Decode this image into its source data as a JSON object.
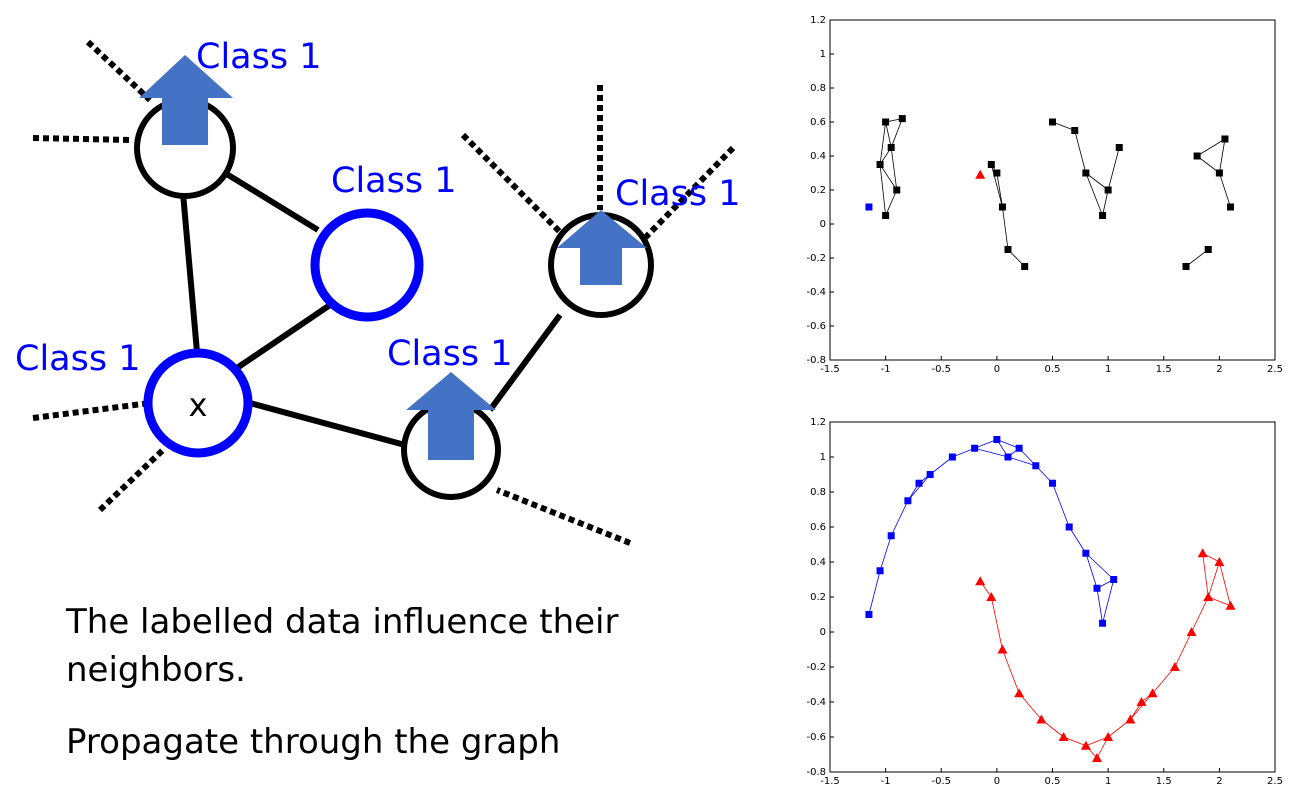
{
  "graph": {
    "labels": {
      "top_left": "Class 1",
      "middle": "Class 1",
      "right": "Class 1",
      "node_x_side": "Class 1",
      "bottom_middle": "Class 1"
    },
    "node_x_text": "x",
    "colors": {
      "label": "#0000ff",
      "arrow": "#4472c4",
      "labelled_ring": "#0000ff",
      "edge": "#000000"
    }
  },
  "text": {
    "line1": "The labelled data influence their",
    "line2": "neighbors.",
    "line3": "Propagate through the graph"
  },
  "chart_data": [
    {
      "type": "scatter",
      "xlim": [
        -1.5,
        2.5
      ],
      "ylim": [
        -0.8,
        1.2
      ],
      "xticks": [
        "-1.5",
        "-1",
        "-0.5",
        "0",
        "0.5",
        "1",
        "1.5",
        "2",
        "2.5"
      ],
      "yticks": [
        "1.2",
        "1",
        "0.8",
        "0.6",
        "0.4",
        "0.2",
        "0",
        "-0.2",
        "-0.4",
        "-0.6",
        "-0.8"
      ],
      "series": [
        {
          "color": "#000000",
          "points": [
            [
              -1.05,
              0.35
            ],
            [
              -1.0,
              0.6
            ],
            [
              -0.95,
              0.45
            ],
            [
              -0.9,
              0.2
            ],
            [
              -1.0,
              0.05
            ],
            [
              -0.85,
              0.62
            ],
            [
              0.0,
              0.3
            ],
            [
              0.05,
              0.1
            ],
            [
              0.1,
              -0.15
            ],
            [
              0.25,
              -0.25
            ],
            [
              -0.05,
              0.35
            ],
            [
              0.5,
              0.6
            ],
            [
              0.7,
              0.55
            ],
            [
              0.8,
              0.3
            ],
            [
              1.0,
              0.2
            ],
            [
              0.95,
              0.05
            ],
            [
              1.1,
              0.45
            ],
            [
              1.8,
              0.4
            ],
            [
              2.0,
              0.3
            ],
            [
              2.1,
              0.1
            ],
            [
              1.9,
              -0.15
            ],
            [
              1.7,
              -0.25
            ],
            [
              2.05,
              0.5
            ]
          ]
        },
        {
          "color": "#0000ff",
          "points": [
            [
              -1.15,
              0.1
            ]
          ]
        },
        {
          "color": "#ff0000",
          "points": [
            [
              -0.15,
              0.29
            ]
          ]
        }
      ]
    },
    {
      "type": "scatter",
      "xlim": [
        -1.5,
        2.5
      ],
      "ylim": [
        -0.8,
        1.2
      ],
      "xticks": [
        "-1.5",
        "-1",
        "-0.5",
        "0",
        "0.5",
        "1",
        "1.5",
        "2",
        "2.5"
      ],
      "yticks": [
        "1.2",
        "1",
        "0.8",
        "0.6",
        "0.4",
        "0.2",
        "0",
        "-0.2",
        "-0.4",
        "-0.6",
        "-0.8"
      ],
      "series": [
        {
          "color": "#0000ff",
          "points": [
            [
              -1.15,
              0.1
            ],
            [
              -1.05,
              0.35
            ],
            [
              -0.95,
              0.55
            ],
            [
              -0.8,
              0.75
            ],
            [
              -0.6,
              0.9
            ],
            [
              -0.4,
              1.0
            ],
            [
              -0.2,
              1.05
            ],
            [
              0.0,
              1.1
            ],
            [
              0.2,
              1.05
            ],
            [
              0.35,
              0.95
            ],
            [
              0.5,
              0.85
            ],
            [
              0.65,
              0.6
            ],
            [
              0.8,
              0.45
            ],
            [
              0.9,
              0.25
            ],
            [
              0.95,
              0.05
            ],
            [
              1.05,
              0.3
            ],
            [
              -0.7,
              0.85
            ],
            [
              0.1,
              1.0
            ]
          ]
        },
        {
          "color": "#ff0000",
          "points": [
            [
              -0.15,
              0.29
            ],
            [
              -0.05,
              0.2
            ],
            [
              0.05,
              -0.1
            ],
            [
              0.2,
              -0.35
            ],
            [
              0.4,
              -0.5
            ],
            [
              0.6,
              -0.6
            ],
            [
              0.8,
              -0.65
            ],
            [
              1.0,
              -0.6
            ],
            [
              1.2,
              -0.5
            ],
            [
              1.4,
              -0.35
            ],
            [
              1.6,
              -0.2
            ],
            [
              1.75,
              0.0
            ],
            [
              1.9,
              0.2
            ],
            [
              2.0,
              0.4
            ],
            [
              2.1,
              0.15
            ],
            [
              1.85,
              0.45
            ],
            [
              0.9,
              -0.72
            ],
            [
              1.3,
              -0.4
            ]
          ]
        }
      ]
    }
  ]
}
